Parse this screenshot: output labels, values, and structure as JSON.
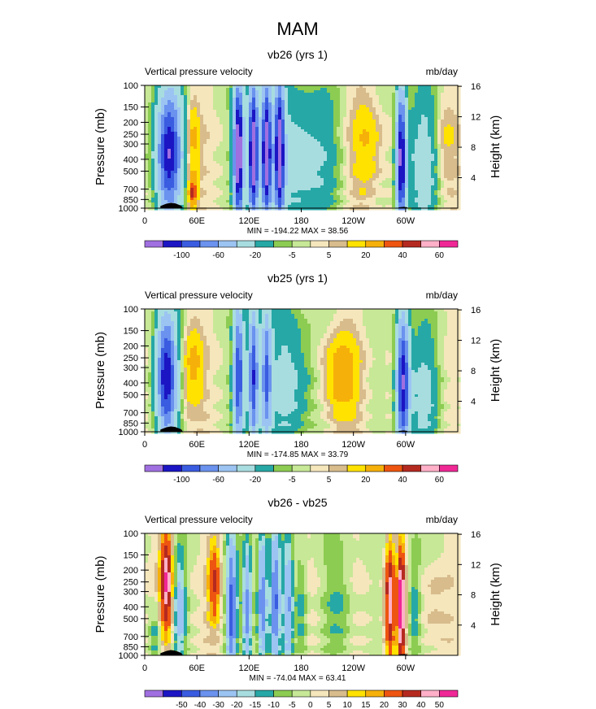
{
  "chart_data": {
    "type": "heatmap",
    "title": "MAM",
    "panels": [
      {
        "id": "vb26",
        "title": "vb26 (yrs 1)",
        "left_label": "Vertical pressure velocity",
        "right_label": "mb/day",
        "ylabel": "Pressure (mb)",
        "y2label": "Height (km)",
        "minmax": "MIN = -194.22  MAX =  38.56",
        "colorbar_levels": [
          -120,
          -100,
          -80,
          -60,
          -40,
          -20,
          -10,
          -5,
          0,
          5,
          10,
          20,
          30,
          40,
          50,
          60
        ],
        "colorbar_labels": [
          {
            "v": -100,
            "t": "-100"
          },
          {
            "v": -60,
            "t": "-60"
          },
          {
            "v": -20,
            "t": "-20"
          },
          {
            "v": -5,
            "t": "-5"
          },
          {
            "v": 5,
            "t": "5"
          },
          {
            "v": 20,
            "t": "20"
          },
          {
            "v": 40,
            "t": "40"
          },
          {
            "v": 60,
            "t": "60"
          }
        ],
        "field": [
          {
            "lon": 28,
            "p": 350,
            "amp": -120,
            "sx": 10,
            "sp": 0.8
          },
          {
            "lon": 55,
            "p": 300,
            "amp": 25,
            "sx": 6,
            "sp": 0.6
          },
          {
            "lon": 55,
            "p": 750,
            "amp": 40,
            "sx": 4,
            "sp": 0.2
          },
          {
            "lon": 108,
            "p": 350,
            "amp": -150,
            "sx": 4,
            "sp": 0.9
          },
          {
            "lon": 125,
            "p": 350,
            "amp": -150,
            "sx": 4,
            "sp": 0.9
          },
          {
            "lon": 140,
            "p": 350,
            "amp": -140,
            "sx": 4,
            "sp": 0.9
          },
          {
            "lon": 155,
            "p": 350,
            "amp": -130,
            "sx": 4,
            "sp": 0.9
          },
          {
            "lon": 180,
            "p": 400,
            "amp": -30,
            "sx": 25,
            "sp": 0.9
          },
          {
            "lon": 255,
            "p": 300,
            "amp": 20,
            "sx": 12,
            "sp": 0.7
          },
          {
            "lon": 295,
            "p": 400,
            "amp": -130,
            "sx": 4,
            "sp": 0.9
          },
          {
            "lon": 320,
            "p": 450,
            "amp": -30,
            "sx": 12,
            "sp": 0.9
          },
          {
            "lon": 345,
            "p": 300,
            "amp": 10,
            "sx": 10,
            "sp": 0.6
          }
        ]
      },
      {
        "id": "vb25",
        "title": "vb25 (yrs 1)",
        "left_label": "Vertical pressure velocity",
        "right_label": "mb/day",
        "ylabel": "Pressure (mb)",
        "y2label": "Height (km)",
        "minmax": "MIN = -174.85  MAX =  33.79",
        "colorbar_levels": [
          -120,
          -100,
          -80,
          -60,
          -40,
          -20,
          -10,
          -5,
          0,
          5,
          10,
          20,
          30,
          40,
          50,
          60
        ],
        "colorbar_labels": [
          {
            "v": -100,
            "t": "-100"
          },
          {
            "v": -60,
            "t": "-60"
          },
          {
            "v": -20,
            "t": "-20"
          },
          {
            "v": -5,
            "t": "-5"
          },
          {
            "v": 5,
            "t": "5"
          },
          {
            "v": 20,
            "t": "20"
          },
          {
            "v": 40,
            "t": "40"
          },
          {
            "v": 60,
            "t": "60"
          }
        ],
        "field": [
          {
            "lon": 25,
            "p": 350,
            "amp": -120,
            "sx": 8,
            "sp": 0.8
          },
          {
            "lon": 55,
            "p": 300,
            "amp": 25,
            "sx": 8,
            "sp": 0.6
          },
          {
            "lon": 108,
            "p": 350,
            "amp": -100,
            "sx": 4,
            "sp": 0.9
          },
          {
            "lon": 125,
            "p": 350,
            "amp": -100,
            "sx": 4,
            "sp": 0.9
          },
          {
            "lon": 140,
            "p": 350,
            "amp": -80,
            "sx": 4,
            "sp": 0.9
          },
          {
            "lon": 165,
            "p": 400,
            "amp": -25,
            "sx": 20,
            "sp": 0.9
          },
          {
            "lon": 225,
            "p": 350,
            "amp": 30,
            "sx": 14,
            "sp": 0.6
          },
          {
            "lon": 297,
            "p": 400,
            "amp": -120,
            "sx": 5,
            "sp": 0.9
          },
          {
            "lon": 320,
            "p": 500,
            "amp": -25,
            "sx": 12,
            "sp": 0.8
          }
        ]
      },
      {
        "id": "diff",
        "title": "vb26 - vb25",
        "left_label": "Vertical pressure velocity",
        "right_label": "mb/day",
        "ylabel": "Pressure (mb)",
        "y2label": "Height (km)",
        "minmax": "MIN = -74.04  MAX =  63.41",
        "colorbar_levels": [
          -60,
          -50,
          -40,
          -30,
          -20,
          -15,
          -10,
          -5,
          0,
          5,
          10,
          15,
          20,
          30,
          40,
          50
        ],
        "colorbar_labels": [
          {
            "v": -50,
            "t": "-50"
          },
          {
            "v": -40,
            "t": "-40"
          },
          {
            "v": -30,
            "t": "-30"
          },
          {
            "v": -20,
            "t": "-20"
          },
          {
            "v": -15,
            "t": "-15"
          },
          {
            "v": -10,
            "t": "-10"
          },
          {
            "v": -5,
            "t": "-5"
          },
          {
            "v": 0,
            "t": "0"
          },
          {
            "v": 5,
            "t": "5"
          },
          {
            "v": 10,
            "t": "10"
          },
          {
            "v": 15,
            "t": "15"
          },
          {
            "v": 20,
            "t": "20"
          },
          {
            "v": 30,
            "t": "30"
          },
          {
            "v": 40,
            "t": "40"
          },
          {
            "v": 50,
            "t": "50"
          }
        ],
        "field": [
          {
            "lon": 25,
            "p": 250,
            "amp": 50,
            "sx": 5,
            "sp": 0.7
          },
          {
            "lon": 12,
            "p": 700,
            "amp": -15,
            "sx": 5,
            "sp": 0.4
          },
          {
            "lon": 40,
            "p": 400,
            "amp": -25,
            "sx": 5,
            "sp": 0.7
          },
          {
            "lon": 80,
            "p": 250,
            "amp": 30,
            "sx": 5,
            "sp": 0.6
          },
          {
            "lon": 100,
            "p": 400,
            "amp": -45,
            "sx": 4,
            "sp": 0.9
          },
          {
            "lon": 118,
            "p": 400,
            "amp": -35,
            "sx": 4,
            "sp": 0.9
          },
          {
            "lon": 135,
            "p": 350,
            "amp": -40,
            "sx": 4,
            "sp": 0.9
          },
          {
            "lon": 150,
            "p": 350,
            "amp": -40,
            "sx": 4,
            "sp": 0.9
          },
          {
            "lon": 165,
            "p": 400,
            "amp": -30,
            "sx": 4,
            "sp": 0.9
          },
          {
            "lon": 180,
            "p": 450,
            "amp": -15,
            "sx": 5,
            "sp": 0.8
          },
          {
            "lon": 225,
            "p": 400,
            "amp": -10,
            "sx": 12,
            "sp": 0.8
          },
          {
            "lon": 282,
            "p": 350,
            "amp": 45,
            "sx": 4,
            "sp": 0.8
          },
          {
            "lon": 295,
            "p": 400,
            "amp": 60,
            "sx": 3,
            "sp": 0.8
          },
          {
            "lon": 310,
            "p": 400,
            "amp": -15,
            "sx": 5,
            "sp": 0.8
          },
          {
            "lon": 330,
            "p": 400,
            "amp": 8,
            "sx": 10,
            "sp": 0.6
          }
        ]
      }
    ],
    "x_axis": {
      "range": [
        0,
        360
      ],
      "ticks": [
        {
          "v": 0,
          "t": "0"
        },
        {
          "v": 60,
          "t": "60E"
        },
        {
          "v": 120,
          "t": "120E"
        },
        {
          "v": 180,
          "t": "180"
        },
        {
          "v": 240,
          "t": "120W"
        },
        {
          "v": 300,
          "t": "60W"
        }
      ]
    },
    "y_axis": {
      "range": [
        1000,
        100
      ],
      "scale": "log",
      "ticks": [
        {
          "v": 100,
          "t": "100"
        },
        {
          "v": 150,
          "t": "150"
        },
        {
          "v": 200,
          "t": "200"
        },
        {
          "v": 250,
          "t": "250"
        },
        {
          "v": 300,
          "t": "300"
        },
        {
          "v": 400,
          "t": "400"
        },
        {
          "v": 500,
          "t": "500"
        },
        {
          "v": 700,
          "t": "700"
        },
        {
          "v": 850,
          "t": "850"
        },
        {
          "v": 1000,
          "t": "1000"
        }
      ]
    },
    "y2_axis": {
      "ticks": [
        {
          "v": 4,
          "t": "4"
        },
        {
          "v": 8,
          "t": "8"
        },
        {
          "v": 12,
          "t": "12"
        },
        {
          "v": 16,
          "t": "16"
        }
      ]
    },
    "colorbar_colors": [
      "#a06fe0",
      "#1b15c4",
      "#3a5ce0",
      "#6a92ee",
      "#9cc4f2",
      "#a8dde0",
      "#26a8a6",
      "#8ccc52",
      "#c7e896",
      "#f5e6bc",
      "#d8bc8c",
      "#ffe200",
      "#f6b00a",
      "#ee5510",
      "#b52a20",
      "#ffb0c8",
      "#f02896"
    ]
  }
}
